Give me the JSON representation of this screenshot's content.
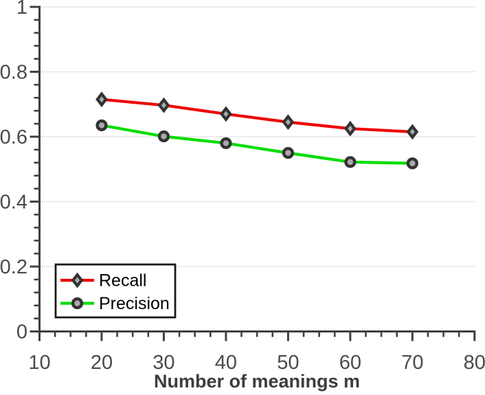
{
  "chart_data": {
    "type": "line",
    "title": "",
    "xlabel": "Number of meanings m",
    "ylabel": "",
    "x": [
      20,
      30,
      40,
      50,
      60,
      70
    ],
    "series": [
      {
        "name": "Recall",
        "color": "#ee0000",
        "marker": "diamond",
        "values": [
          0.715,
          0.697,
          0.67,
          0.645,
          0.625,
          0.615
        ]
      },
      {
        "name": "Precision",
        "color": "#00dd00",
        "marker": "circle",
        "values": [
          0.635,
          0.601,
          0.58,
          0.55,
          0.522,
          0.518
        ]
      }
    ],
    "xlim": [
      10,
      80
    ],
    "ylim": [
      0,
      1
    ],
    "xticks": [
      10,
      20,
      30,
      40,
      50,
      60,
      70,
      80
    ],
    "xtick_labels": [
      "10",
      "20",
      "30",
      "40",
      "50",
      "60",
      "70",
      "80"
    ],
    "yticks": [
      0,
      0.2,
      0.4,
      0.6,
      0.8,
      1
    ],
    "ytick_labels": [
      "0",
      "0.2",
      "0.4",
      "0.6",
      "0.8",
      "1"
    ],
    "x_minor_step": 2.5,
    "y_minor_step": 0.04,
    "grid": "horizontal",
    "legend_position": "bottom-left"
  },
  "colors": {
    "background": "#ffffff",
    "axis": "#404040",
    "grid": "#e7e7e7",
    "tick_label": "#4a4a4a",
    "xlabel": "#3d3d3d",
    "marker_fill": "#aaaaaa",
    "marker_edge": "#333333",
    "legend_border": "#1a1a1a",
    "legend_background": "#ffffff"
  }
}
